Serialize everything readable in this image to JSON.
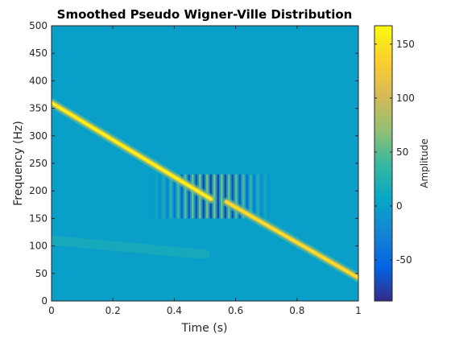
{
  "chart_data": {
    "type": "heatmap",
    "title": "Smoothed Pseudo Wigner-Ville Distribution",
    "xlabel": "Time (s)",
    "ylabel": "Frequency (Hz)",
    "xlim": [
      0,
      1
    ],
    "ylim": [
      0,
      500
    ],
    "xticks": [
      0,
      0.2,
      0.4,
      0.6,
      0.8,
      1
    ],
    "xtick_labels": [
      "0",
      "0.2",
      "0.4",
      "0.6",
      "0.8",
      "1"
    ],
    "yticks": [
      0,
      50,
      100,
      150,
      200,
      250,
      300,
      350,
      400,
      450,
      500
    ],
    "ytick_labels": [
      "0",
      "50",
      "100",
      "150",
      "200",
      "250",
      "300",
      "350",
      "400",
      "450",
      "500"
    ],
    "colormap": "parula",
    "colorbar": {
      "label": "Amplitude",
      "limits": [
        -88,
        167
      ],
      "ticks": [
        -50,
        0,
        50,
        100,
        150
      ],
      "tick_labels": [
        "-50",
        "0",
        "50",
        "100",
        "150"
      ]
    },
    "components": [
      {
        "t": [
          0.0,
          0.52
        ],
        "f": [
          360,
          185
        ],
        "peak_amplitude": 167
      },
      {
        "t": [
          0.57,
          1.0
        ],
        "f": [
          180,
          42
        ],
        "peak_amplitude": 150
      },
      {
        "t": [
          0.0,
          0.5
        ],
        "f": [
          110,
          85
        ],
        "peak_amplitude": 25
      }
    ],
    "interference_region": {
      "t": [
        0.33,
        0.72
      ],
      "f": [
        150,
        230
      ],
      "amplitude_range": [
        -85,
        80
      ]
    }
  }
}
